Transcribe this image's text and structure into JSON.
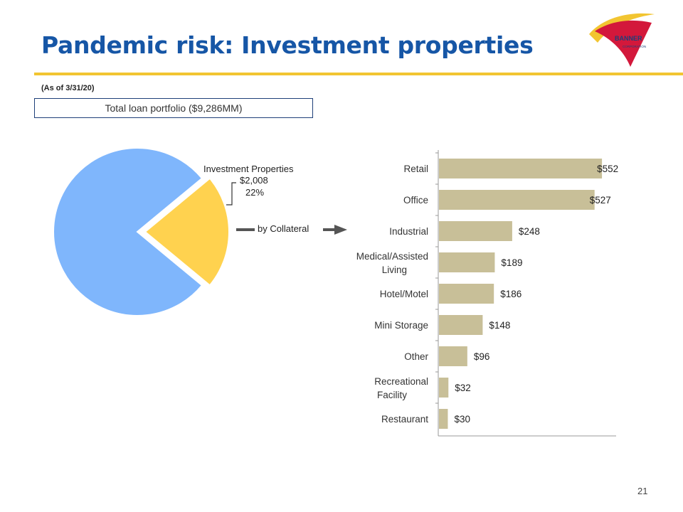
{
  "slide": {
    "title": "Pandemic risk: Investment properties",
    "as_of": "(As of 3/31/20)",
    "portfolio_label": "Total loan portfolio ($9,286MM)",
    "page_number": "21"
  },
  "logo": {
    "text": "BANNER",
    "subtext": "CORPORATION"
  },
  "pie": {
    "slice_label": "Investment Properties",
    "slice_amount": "$2,008",
    "slice_pct": "22%",
    "arrow_label": "by Collateral"
  },
  "colors": {
    "title": "#1656a6",
    "rule": "#f2c531",
    "pie_main": "#7fb6fc",
    "pie_slice": "#ffd24f",
    "bar": "#c8bf98",
    "axis": "#999999",
    "arrow": "#555555"
  },
  "chart_data": [
    {
      "type": "pie",
      "title": "Total loan portfolio ($9,286MM)",
      "slices": [
        {
          "label": "",
          "value": 78
        },
        {
          "label": "Investment Properties",
          "value": 22,
          "amount": "$2,008",
          "exploded": true
        }
      ]
    },
    {
      "type": "bar",
      "orientation": "horizontal",
      "categories": [
        "Retail",
        "Office",
        "Industrial",
        "Medical/Assisted Living",
        "Hotel/Motel",
        "Mini Storage",
        "Other",
        "Recreational Facility",
        "Restaurant"
      ],
      "values": [
        552,
        527,
        248,
        189,
        186,
        148,
        96,
        32,
        30
      ],
      "data_labels": [
        "$552",
        "$527",
        "$248",
        "$189",
        "$186",
        "$148",
        "$96",
        "$32",
        "$30"
      ],
      "xlim": [
        0,
        600
      ],
      "grid": false
    }
  ]
}
